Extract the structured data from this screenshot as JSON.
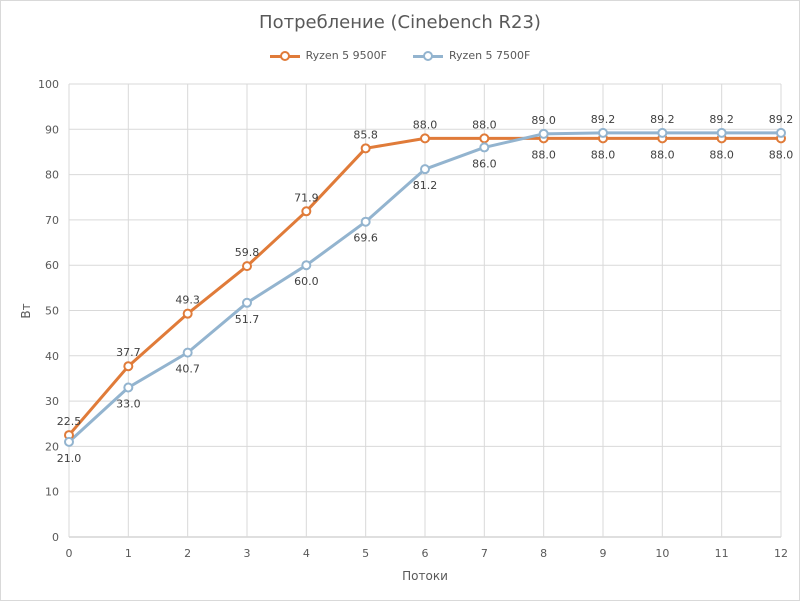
{
  "chart_data": {
    "type": "line",
    "title": "Потребление (Cinebench R23)",
    "xlabel": "Потоки",
    "ylabel": "Вт",
    "x": [
      0,
      1,
      2,
      3,
      4,
      5,
      6,
      7,
      8,
      9,
      10,
      11,
      12
    ],
    "xlim": [
      0,
      12
    ],
    "ylim": [
      0,
      100
    ],
    "yticks": [
      0,
      10,
      20,
      30,
      40,
      50,
      60,
      70,
      80,
      90,
      100
    ],
    "grid": true,
    "legend_position": "top",
    "series": [
      {
        "name": "Ryzen 5 9500F",
        "color": "#e07b39",
        "values": [
          22.5,
          37.7,
          49.3,
          59.8,
          71.9,
          85.8,
          88.0,
          88.0,
          88.0,
          88.0,
          88.0,
          88.0,
          88.0
        ],
        "data_labels": [
          "22.5",
          "37.7",
          "49.3",
          "59.8",
          "71.9",
          "85.8",
          "88.0",
          "88.0",
          "88.0",
          "88.0",
          "88.0",
          "88.0",
          "88.0"
        ]
      },
      {
        "name": "Ryzen 5 7500F",
        "color": "#93b4cf",
        "values": [
          21.0,
          33.0,
          40.7,
          51.7,
          60.0,
          69.6,
          81.2,
          86.0,
          89.0,
          89.2,
          89.2,
          89.2,
          89.2
        ],
        "data_labels": [
          "21.0",
          "33.0",
          "40.7",
          "51.7",
          "60.0",
          "69.6",
          "81.2",
          "86.0",
          "89.0",
          "89.2",
          "89.2",
          "89.2",
          "89.2"
        ]
      }
    ]
  }
}
